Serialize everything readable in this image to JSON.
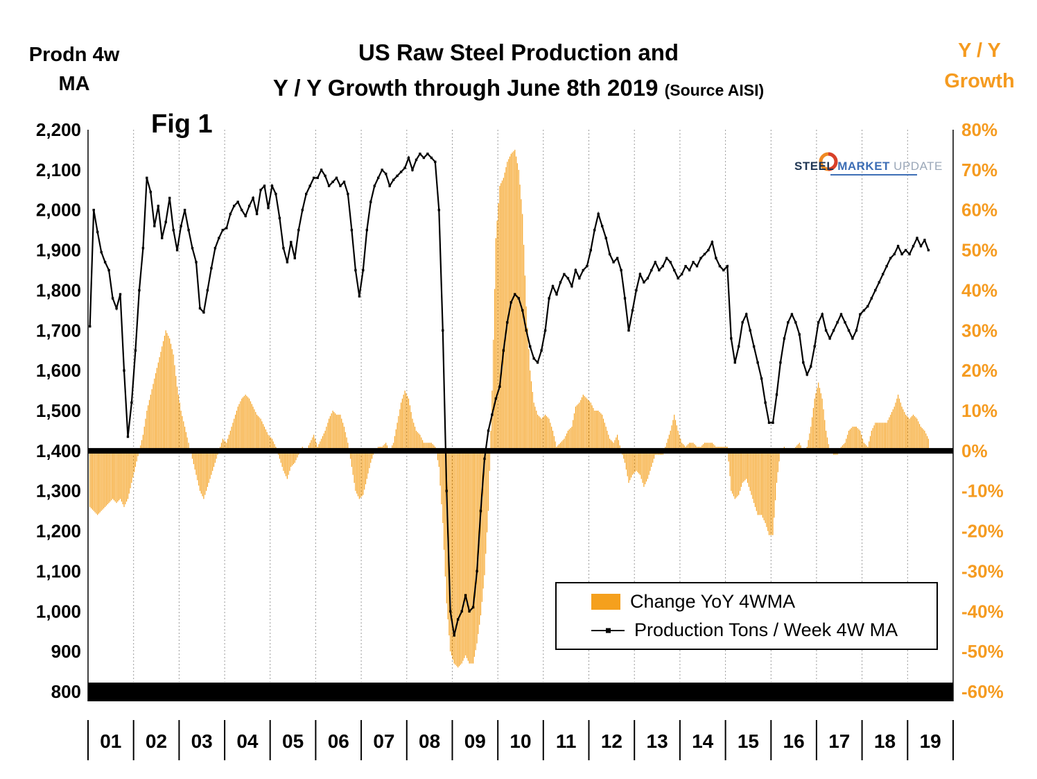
{
  "header": {
    "left_axis_title_line1": "Prodn 4w",
    "left_axis_title_line2": "MA",
    "title_line1": "US Raw Steel Production and",
    "title_line2": "Y / Y Growth through June 8th 2019",
    "title_source": "(Source AISI)",
    "right_axis_title_line1": "Y / Y",
    "right_axis_title_line2": "Growth"
  },
  "fig_label": "Fig 1",
  "logo": {
    "word_steel": "STEEL",
    "word_market": "MARKET",
    "word_update": "UPDATE"
  },
  "legend": {
    "bar_label": "Change YoY 4WMA",
    "line_label": "Production Tons / Week 4W MA"
  },
  "colors": {
    "bar_orange": "#F5A01D",
    "axis_orange": "#F59B20",
    "line_black": "#000000"
  },
  "chart_data": {
    "type": "combo",
    "title": "US Raw Steel Production and Y / Y Growth through June 8th 2019",
    "source_note": "(Source AISI)",
    "x_start": "2001-01",
    "x_end": "2019-06",
    "interval": "monthly",
    "x_tick_labels": [
      "01",
      "02",
      "03",
      "04",
      "05",
      "06",
      "07",
      "08",
      "09",
      "10",
      "11",
      "12",
      "13",
      "14",
      "15",
      "16",
      "17",
      "18",
      "19"
    ],
    "left_axis": {
      "title": "Prodn 4w MA",
      "min": 800,
      "max": 2200,
      "tick_values": [
        2200,
        2100,
        2000,
        1900,
        1800,
        1700,
        1600,
        1500,
        1400,
        1300,
        1200,
        1100,
        1000,
        900,
        800
      ],
      "tick_labels": [
        "2,200",
        "2,100",
        "2,000",
        "1,900",
        "1,800",
        "1,700",
        "1,600",
        "1,500",
        "1,400",
        "1,300",
        "1,200",
        "1,100",
        "1,000",
        "900",
        "800"
      ]
    },
    "right_axis": {
      "title": "Y / Y Growth",
      "min": -60,
      "max": 80,
      "tick_values": [
        80,
        70,
        60,
        50,
        40,
        30,
        20,
        10,
        0,
        -10,
        -20,
        -30,
        -40,
        -50,
        -60
      ],
      "tick_labels": [
        "80%",
        "70%",
        "60%",
        "50%",
        "40%",
        "30%",
        "20%",
        "10%",
        "0%",
        "-10%",
        "-20%",
        "-30%",
        "-40%",
        "-50%",
        "-60%"
      ],
      "color": "#F59B20"
    },
    "zero_baseline_pct": 0,
    "gridlines": "vertical-dotted-yearly",
    "legend_position": "inside-lower-right",
    "series": [
      {
        "name": "Change YoY 4WMA",
        "type": "bar",
        "axis": "right",
        "color": "#F5A01D",
        "values": [
          -14,
          -15,
          -16,
          -15,
          -14,
          -13,
          -12,
          -13,
          -12,
          -14,
          -12,
          -8,
          -4,
          0,
          4,
          10,
          14,
          18,
          22,
          26,
          30,
          28,
          24,
          16,
          10,
          6,
          2,
          -2,
          -6,
          -10,
          -12,
          -9,
          -6,
          -3,
          0,
          3,
          2,
          5,
          8,
          11,
          13,
          14,
          13,
          11,
          9,
          8,
          6,
          4,
          3,
          1,
          -2,
          -5,
          -7,
          -4,
          -3,
          -1,
          1,
          0,
          2,
          4,
          1,
          3,
          5,
          8,
          10,
          9,
          9,
          6,
          2,
          -4,
          -10,
          -12,
          -11,
          -7,
          -3,
          0,
          1,
          1,
          2,
          0,
          2,
          7,
          12,
          15,
          13,
          8,
          5,
          4,
          2,
          2,
          2,
          1,
          -4,
          -18,
          -38,
          -50,
          -53,
          -54,
          -53,
          -51,
          -53,
          -53,
          -48,
          -41,
          -31,
          -15,
          15,
          53,
          66,
          68,
          72,
          74,
          75,
          70,
          59,
          36,
          20,
          12,
          9,
          8,
          9,
          8,
          5,
          1,
          2,
          3,
          5,
          6,
          11,
          12,
          14,
          13,
          12,
          10,
          10,
          9,
          6,
          3,
          2,
          4,
          0,
          -3,
          -8,
          -6,
          -5,
          -6,
          -9,
          -7,
          -4,
          -1,
          -1,
          -1,
          2,
          5,
          9,
          5,
          2,
          1,
          2,
          2,
          1,
          1,
          2,
          2,
          2,
          1,
          1,
          1,
          1,
          -10,
          -12,
          -11,
          -8,
          -7,
          -10,
          -13,
          -16,
          -16,
          -18,
          -21,
          -21,
          -8,
          0,
          1,
          0,
          0,
          1,
          2,
          0,
          1,
          6,
          13,
          17,
          13,
          5,
          0,
          -1,
          -1,
          1,
          2,
          5,
          6,
          6,
          5,
          2,
          1,
          5,
          7,
          7,
          7,
          7,
          9,
          11,
          14,
          11,
          9,
          8,
          9,
          8,
          6,
          5,
          3
        ]
      },
      {
        "name": "Production Tons / Week 4W MA",
        "type": "line",
        "axis": "left",
        "color": "#000000",
        "values": [
          1710,
          2000,
          1945,
          1895,
          1870,
          1850,
          1780,
          1755,
          1790,
          1600,
          1435,
          1520,
          1650,
          1800,
          1905,
          2080,
          2045,
          1960,
          2010,
          1930,
          1970,
          2030,
          1950,
          1900,
          1960,
          2000,
          1950,
          1905,
          1870,
          1755,
          1745,
          1800,
          1855,
          1905,
          1930,
          1950,
          1955,
          1990,
          2010,
          2020,
          2000,
          1985,
          2010,
          2030,
          1990,
          2050,
          2060,
          2005,
          2060,
          2040,
          1980,
          1905,
          1870,
          1920,
          1880,
          1950,
          2000,
          2040,
          2060,
          2080,
          2080,
          2100,
          2085,
          2060,
          2070,
          2080,
          2060,
          2070,
          2040,
          1950,
          1850,
          1785,
          1850,
          1950,
          2020,
          2060,
          2080,
          2100,
          2090,
          2060,
          2075,
          2085,
          2095,
          2105,
          2130,
          2100,
          2125,
          2140,
          2130,
          2140,
          2130,
          2120,
          2000,
          1700,
          1300,
          1000,
          940,
          980,
          1000,
          1040,
          1000,
          1010,
          1100,
          1250,
          1380,
          1450,
          1490,
          1530,
          1560,
          1650,
          1720,
          1770,
          1790,
          1780,
          1750,
          1700,
          1660,
          1630,
          1620,
          1650,
          1700,
          1780,
          1810,
          1790,
          1820,
          1840,
          1830,
          1810,
          1850,
          1830,
          1850,
          1860,
          1900,
          1950,
          1990,
          1960,
          1930,
          1890,
          1870,
          1880,
          1850,
          1780,
          1700,
          1750,
          1800,
          1840,
          1820,
          1830,
          1850,
          1870,
          1850,
          1860,
          1880,
          1870,
          1850,
          1830,
          1840,
          1860,
          1850,
          1870,
          1860,
          1880,
          1890,
          1900,
          1920,
          1880,
          1860,
          1850,
          1860,
          1680,
          1620,
          1660,
          1720,
          1740,
          1700,
          1660,
          1620,
          1580,
          1520,
          1470,
          1470,
          1540,
          1620,
          1680,
          1720,
          1740,
          1720,
          1690,
          1620,
          1590,
          1610,
          1660,
          1720,
          1740,
          1700,
          1680,
          1700,
          1720,
          1740,
          1720,
          1700,
          1680,
          1700,
          1740,
          1750,
          1760,
          1780,
          1800,
          1820,
          1840,
          1860,
          1880,
          1890,
          1910,
          1890,
          1900,
          1890,
          1910,
          1930,
          1910,
          1925,
          1900
        ]
      }
    ]
  }
}
